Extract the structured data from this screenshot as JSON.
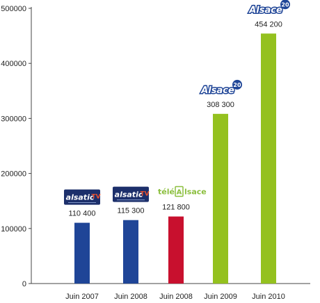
{
  "chart_data": {
    "type": "bar",
    "categories": [
      "Juin 2007",
      "Juin 2008",
      "Juin 2008",
      "Juin 2009",
      "Juin 2010"
    ],
    "values": [
      110400,
      115300,
      121800,
      308300,
      454200
    ],
    "data_labels": [
      "110 400",
      "115 300",
      "121 800",
      "308 300",
      "454 200"
    ],
    "bar_colors": [
      "#1f4597",
      "#1f4597",
      "#c8102e",
      "#94c11f",
      "#94c11f"
    ],
    "ylim": [
      0,
      500000
    ],
    "yticks": [
      0,
      100000,
      200000,
      300000,
      400000,
      500000
    ],
    "ytick_labels": [
      "0",
      "100000",
      "200000",
      "300000",
      "400000",
      "500000"
    ],
    "grid": false,
    "logos": [
      {
        "kind": "alsatic",
        "text": "alsatic",
        "suffix": "TV"
      },
      {
        "kind": "alsatic",
        "text": "alsatic",
        "suffix": "TV"
      },
      {
        "kind": "telealsace",
        "prefix": "télé",
        "box": "A",
        "text": "lsace"
      },
      {
        "kind": "alsace20",
        "text": "Alsace",
        "sup": "20"
      },
      {
        "kind": "alsace20",
        "text": "Alsace",
        "sup": "20"
      }
    ]
  }
}
